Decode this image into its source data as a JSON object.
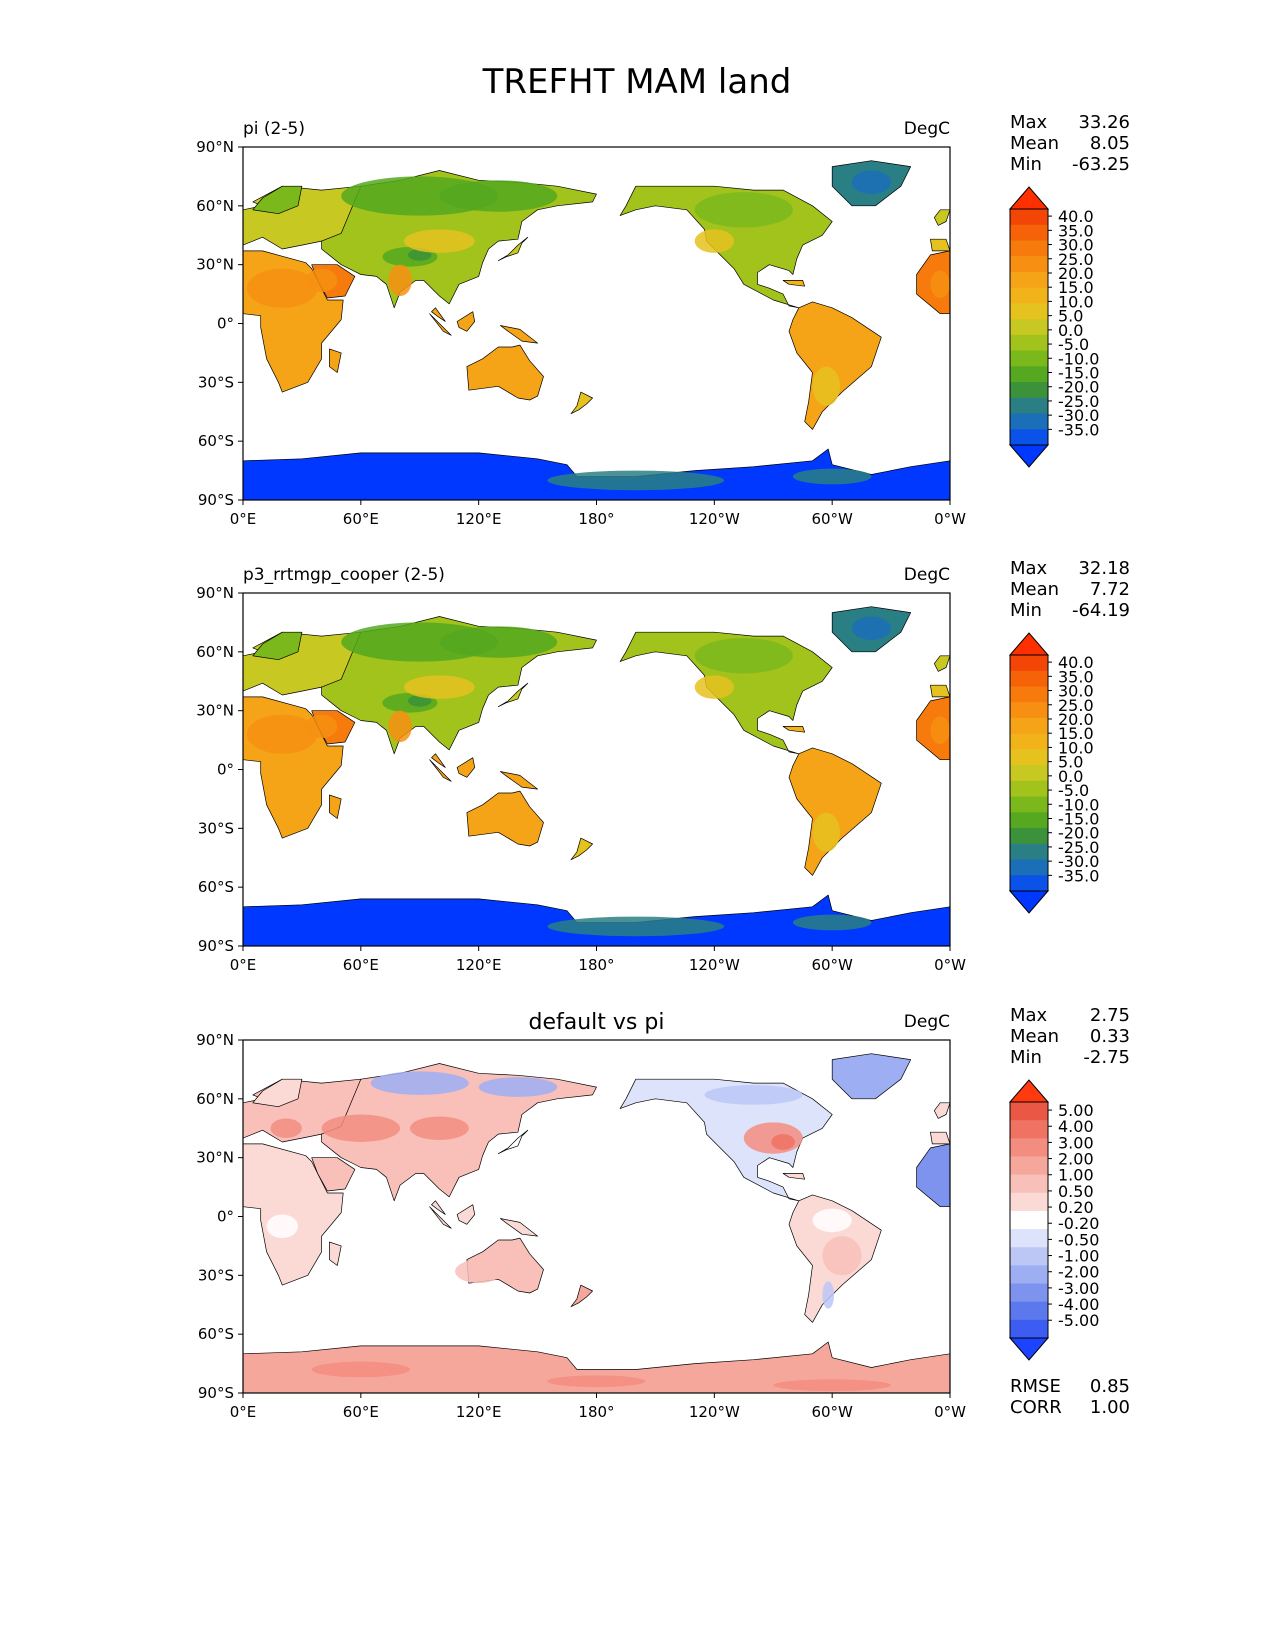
{
  "figure": {
    "title": "TREFHT MAM land"
  },
  "axes": {
    "lat_ticks": [
      {
        "value": 90,
        "label": "90°N"
      },
      {
        "value": 60,
        "label": "60°N"
      },
      {
        "value": 30,
        "label": "30°N"
      },
      {
        "value": 0,
        "label": "0°"
      },
      {
        "value": -30,
        "label": "30°S"
      },
      {
        "value": -60,
        "label": "60°S"
      },
      {
        "value": -90,
        "label": "90°S"
      }
    ],
    "lon_ticks": [
      {
        "value": 0,
        "label": "0°E"
      },
      {
        "value": 60,
        "label": "60°E"
      },
      {
        "value": 120,
        "label": "120°E"
      },
      {
        "value": 180,
        "label": "180°"
      },
      {
        "value": 240,
        "label": "120°W"
      },
      {
        "value": 300,
        "label": "60°W"
      },
      {
        "value": 360,
        "label": "0°W"
      }
    ]
  },
  "colors": {
    "abs_levels": [
      "#0038ff",
      "#0a52e8",
      "#1b6fb8",
      "#2a7f84",
      "#3b923a",
      "#55a820",
      "#7bb81c",
      "#a2c21c",
      "#c8c822",
      "#e6c21e",
      "#f2b31a",
      "#f5a317",
      "#f79012",
      "#f77a0c",
      "#f56208",
      "#f24506",
      "#ff3000"
    ],
    "diff_levels": [
      "#1c43ff",
      "#3c5cf2",
      "#5b78ec",
      "#7e93ee",
      "#9daef2",
      "#bcc7f6",
      "#dde3fb",
      "#ffffff",
      "#fbdad6",
      "#f8c0b9",
      "#f6a79c",
      "#f38d80",
      "#ef7262",
      "#ea5845",
      "#ff3a10"
    ]
  },
  "chart_data": [
    {
      "type": "heatmap",
      "title": "pi (2-5)",
      "units": "DegC",
      "stats": [
        {
          "label": "Max",
          "value": "33.26"
        },
        {
          "label": "Mean",
          "value": "8.05"
        },
        {
          "label": "Min",
          "value": "-63.25"
        }
      ],
      "colorbar": {
        "extend": "both",
        "ticks": [
          "40.0",
          "35.0",
          "30.0",
          "25.0",
          "20.0",
          "15.0",
          "10.0",
          "5.0",
          "0.0",
          "-5.0",
          "-10.0",
          "-15.0",
          "-20.0",
          "-25.0",
          "-30.0",
          "-35.0"
        ]
      },
      "xlim": [
        0,
        360
      ],
      "ylim": [
        -90,
        90
      ],
      "range": [
        -63.25,
        33.26
      ]
    },
    {
      "type": "heatmap",
      "title": "p3_rrtmgp_cooper (2-5)",
      "units": "DegC",
      "stats": [
        {
          "label": "Max",
          "value": "32.18"
        },
        {
          "label": "Mean",
          "value": "7.72"
        },
        {
          "label": "Min",
          "value": "-64.19"
        }
      ],
      "colorbar": {
        "extend": "both",
        "ticks": [
          "40.0",
          "35.0",
          "30.0",
          "25.0",
          "20.0",
          "15.0",
          "10.0",
          "5.0",
          "0.0",
          "-5.0",
          "-10.0",
          "-15.0",
          "-20.0",
          "-25.0",
          "-30.0",
          "-35.0"
        ]
      },
      "xlim": [
        0,
        360
      ],
      "ylim": [
        -90,
        90
      ],
      "range": [
        -64.19,
        32.18
      ]
    },
    {
      "type": "heatmap",
      "title": "default vs pi",
      "units": "DegC",
      "stats": [
        {
          "label": "Max",
          "value": "2.75"
        },
        {
          "label": "Mean",
          "value": "0.33"
        },
        {
          "label": "Min",
          "value": "-2.75"
        }
      ],
      "colorbar": {
        "extend": "both",
        "ticks": [
          "5.00",
          "4.00",
          "3.00",
          "2.00",
          "1.00",
          "0.50",
          "0.20",
          "-0.20",
          "-0.50",
          "-1.00",
          "-2.00",
          "-3.00",
          "-4.00",
          "-5.00"
        ]
      },
      "extra_stats": [
        {
          "label": "RMSE",
          "value": "0.85"
        },
        {
          "label": "CORR",
          "value": "1.00"
        }
      ],
      "xlim": [
        0,
        360
      ],
      "ylim": [
        -90,
        90
      ],
      "range": [
        -2.75,
        2.75
      ]
    }
  ]
}
